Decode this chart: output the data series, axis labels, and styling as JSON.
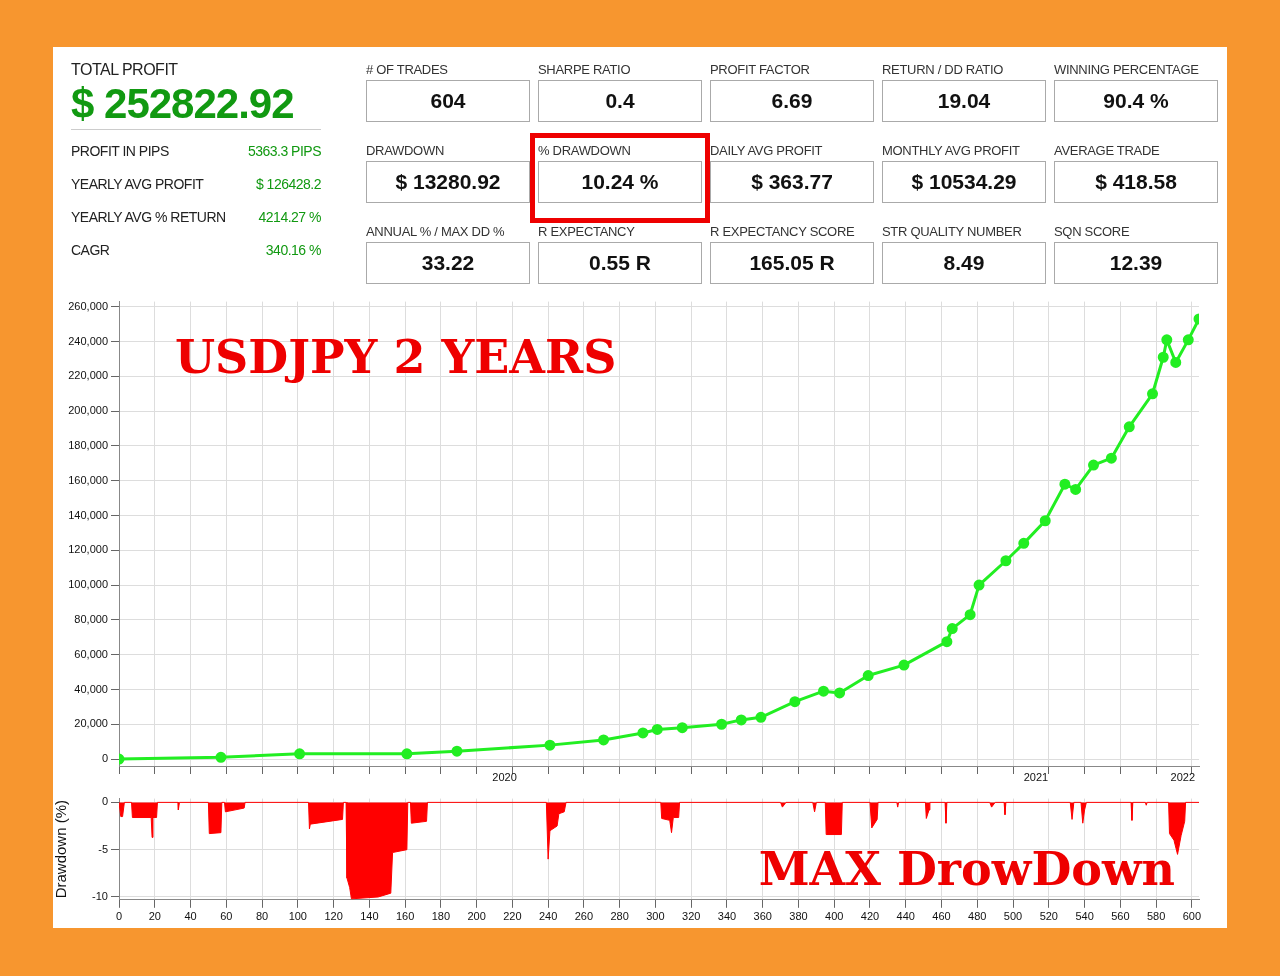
{
  "chart_data": [
    {
      "type": "other",
      "title": "TOTAL PROFIT",
      "subtitle": "$ 252822.92",
      "annotations": [
        "PROFIT IN PIPS",
        "5363.3 PIPS",
        "YEARLY AVG PROFIT",
        "$ 126428.2",
        "YEARLY AVG % RETURN",
        "4214.27 %",
        "CAGR",
        "340.16 %",
        "# OF TRADES",
        "604",
        "SHARPE RATIO",
        "0.4",
        "PROFIT FACTOR",
        "6.69",
        "RETURN / DD RATIO",
        "19.04",
        "WINNING PERCENTAGE",
        "90.4 %",
        "DRAWDOWN",
        "$ 13280.92",
        "% DRAWDOWN",
        "10.24 %",
        "DAILY AVG PROFIT",
        "$ 363.77",
        "MONTHLY AVG PROFIT",
        "$ 10534.29",
        "AVERAGE TRADE",
        "$ 418.58",
        "ANNUAL % / MAX DD %",
        "33.22",
        "R EXPECTANCY",
        "0.55 R",
        "R EXPECTANCY SCORE",
        "165.05 R",
        "STR QUALITY NUMBER",
        "8.49",
        "SQN SCORE",
        "12.39"
      ]
    },
    {
      "type": "line",
      "annotations": [
        "USDJPY 2 YEARS",
        "2020",
        "2021",
        "2022"
      ],
      "tick_labels": "y",
      "x": [
        0,
        57,
        101,
        161,
        189,
        241,
        271,
        293,
        301,
        315,
        337,
        348,
        359,
        378,
        394,
        403,
        419,
        439,
        463,
        466,
        476,
        481,
        496,
        506,
        518,
        529,
        535,
        545,
        555,
        565,
        578,
        584,
        586,
        591,
        598,
        604
      ],
      "series": [
        {
          "color": "#22ee22",
          "values": [
            0,
            1000,
            3000,
            3000,
            4500,
            8000,
            11000,
            15000,
            17000,
            18000,
            20000,
            22500,
            24000,
            33000,
            39000,
            38000,
            48000,
            54000,
            67500,
            75000,
            83000,
            100000,
            114000,
            124000,
            137000,
            158000,
            155000,
            169000,
            173000,
            191000,
            210000,
            231000,
            241000,
            228000,
            241000,
            253000
          ]
        }
      ],
      "xlim": [
        0,
        604
      ],
      "xticks": [
        0,
        20,
        40,
        60,
        80,
        100,
        120,
        140,
        160,
        180,
        200,
        220,
        240,
        260,
        280,
        300,
        320,
        340,
        360,
        380,
        400,
        420,
        440,
        460,
        480,
        500,
        520,
        540,
        560,
        580,
        600
      ],
      "ylim": [
        -4000,
        263000
      ],
      "yticks": [
        0,
        {
          "value": 20000,
          "label": "20,000"
        },
        {
          "value": 40000,
          "label": "40,000"
        },
        {
          "value": 60000,
          "label": "60,000"
        },
        {
          "value": 80000,
          "label": "80,000"
        },
        {
          "value": 100000,
          "label": "100,000"
        },
        {
          "value": 120000,
          "label": "120,000"
        },
        {
          "value": 140000,
          "label": "140,000"
        },
        {
          "value": 160000,
          "label": "160,000"
        },
        {
          "value": 180000,
          "label": "180,000"
        },
        {
          "value": 200000,
          "label": "200,000"
        },
        {
          "value": 220000,
          "label": "220,000"
        },
        {
          "value": 240000,
          "label": "240,000"
        },
        {
          "value": 260000,
          "label": "260,000"
        }
      ],
      "grid": true,
      "legend": false,
      "marker": "circle"
    },
    {
      "type": "area",
      "ylabel": "Drawdown (%)",
      "annotations": [
        "MAX DrowDown"
      ],
      "x": [
        0,
        1,
        2,
        3,
        7,
        7.5,
        18,
        18.5,
        19,
        21,
        21.5,
        33,
        33.2,
        33.8,
        50,
        50.5,
        57,
        57.5,
        59,
        59.5,
        70,
        70.5,
        106,
        106.5,
        107,
        125,
        125.5,
        127,
        127.5,
        129,
        130,
        145,
        152,
        153,
        161,
        161.5,
        163,
        163.5,
        172,
        172.5,
        239,
        240,
        241,
        245,
        246,
        249,
        250,
        303,
        303.5,
        308,
        309,
        310,
        313,
        313.5,
        370,
        371,
        373,
        388,
        389,
        390,
        395,
        395.5,
        404,
        404.5,
        420,
        421,
        424,
        424.5,
        435,
        435.5,
        436,
        451,
        451.5,
        453,
        453.5,
        462,
        462.5,
        463,
        487,
        488,
        490,
        495,
        495.5,
        496,
        532,
        533,
        534,
        538,
        539,
        540,
        541,
        566,
        566.5,
        567,
        574,
        574.5,
        575,
        587,
        587.5,
        590,
        592,
        594,
        596,
        596.5,
        604
      ],
      "series": [
        {
          "color": "#ff0000",
          "values": [
            0,
            -1.5,
            -1.5,
            0,
            0,
            -1.6,
            -1.6,
            -3.7,
            -1.6,
            -1.6,
            0,
            0,
            -0.8,
            0,
            0,
            -3.3,
            -3.2,
            0,
            0,
            -1,
            -0.6,
            0,
            0,
            -2.8,
            -2.3,
            -1.8,
            0,
            0,
            -8,
            -9,
            -10.2,
            -10,
            -9.6,
            -5.3,
            -5,
            0,
            0,
            -2.2,
            -2,
            0,
            0,
            -6,
            -3,
            -2.5,
            -1.2,
            -1,
            0,
            0,
            -1.7,
            -1.9,
            -3.2,
            -1.6,
            -1.6,
            0,
            0,
            -0.5,
            0,
            0,
            -1,
            0,
            0,
            -3.4,
            -3.4,
            0,
            0,
            -2.7,
            -1.8,
            0,
            0,
            -0.5,
            0,
            0,
            -1.7,
            -0.8,
            0,
            0,
            -2.2,
            0,
            0,
            -0.5,
            0,
            0,
            -1.3,
            0,
            0,
            -1.8,
            0,
            0,
            -2.2,
            -0.8,
            0,
            0,
            -1.9,
            0,
            0,
            -0.3,
            0,
            0,
            -3.3,
            -4,
            -5.5,
            -3.5,
            -2,
            0,
            0
          ]
        }
      ],
      "xlim": [
        0,
        604
      ],
      "xticks": [
        0,
        20,
        40,
        60,
        80,
        100,
        120,
        140,
        160,
        180,
        200,
        220,
        240,
        260,
        280,
        300,
        320,
        340,
        360,
        380,
        400,
        420,
        440,
        460,
        480,
        500,
        520,
        540,
        560,
        580,
        600
      ],
      "ylim": [
        -10.3,
        0.4
      ],
      "yticks": [
        0,
        -5,
        -10
      ],
      "grid": true,
      "legend": false
    }
  ]
}
